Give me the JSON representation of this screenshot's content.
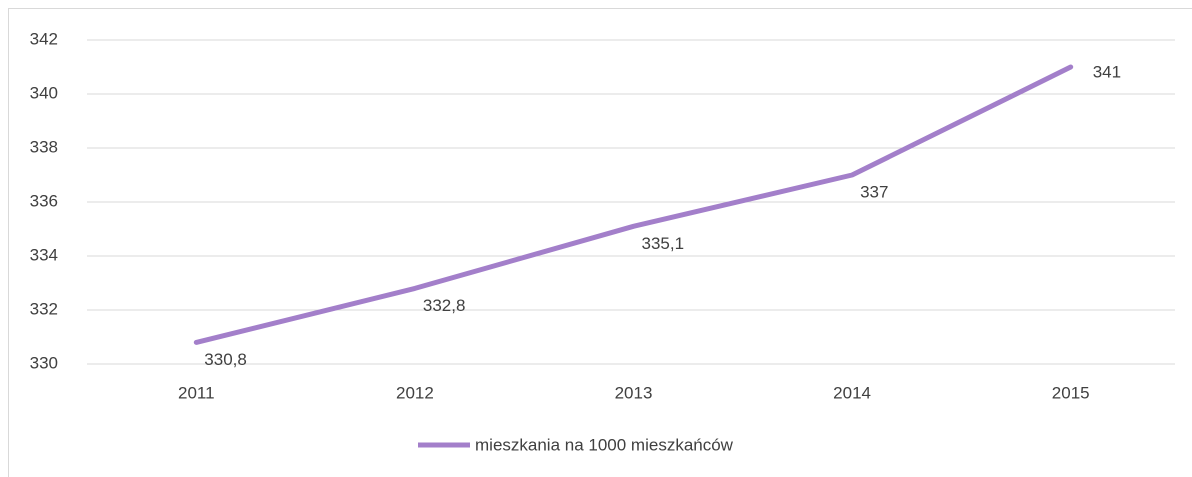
{
  "chart_data": {
    "type": "line",
    "categories": [
      "2011",
      "2012",
      "2013",
      "2014",
      "2015"
    ],
    "series": [
      {
        "name": "mieszkania na 1000 mieszkańców",
        "color": "#a37fca",
        "values": [
          330.8,
          332.8,
          335.1,
          337,
          341
        ],
        "value_labels": [
          "330,8",
          "332,8",
          "335,1",
          "337",
          "341"
        ]
      }
    ],
    "ylim": [
      330,
      342
    ],
    "yticks": [
      330,
      332,
      334,
      336,
      338,
      340,
      342
    ],
    "grid": true,
    "legend": "bottom"
  }
}
